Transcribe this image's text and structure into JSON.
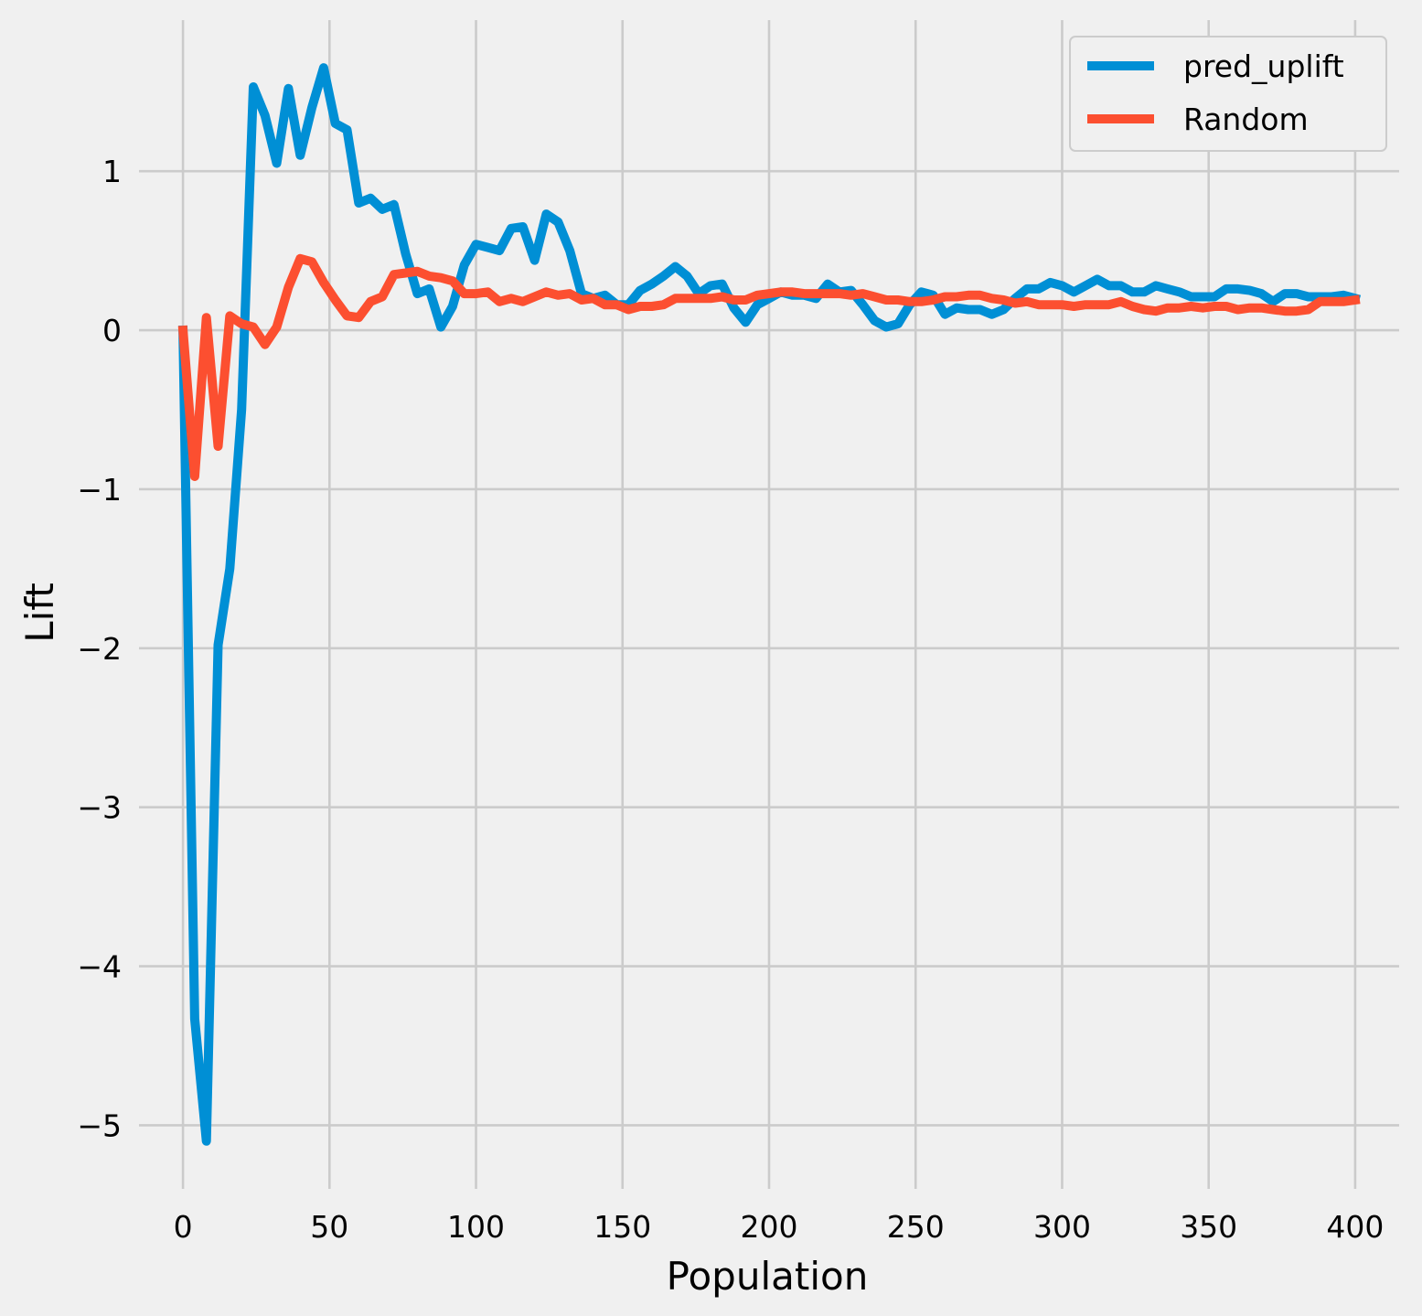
{
  "chart_data": {
    "type": "line",
    "xlabel": "Population",
    "ylabel": "Lift",
    "xlim": [
      -15,
      415
    ],
    "ylim": [
      -5.4,
      1.95
    ],
    "xticks": [
      0,
      50,
      100,
      150,
      200,
      250,
      300,
      350,
      400
    ],
    "xtick_labels": [
      "0",
      "50",
      "100",
      "150",
      "200",
      "250",
      "300",
      "350",
      "400"
    ],
    "yticks": [
      1,
      0,
      -1,
      -2,
      -3,
      -4,
      -5
    ],
    "ytick_labels": [
      "1",
      "0",
      "−1",
      "−2",
      "−3",
      "−4",
      "−5"
    ],
    "grid": true,
    "legend_position": "top-right",
    "series": [
      {
        "name": "pred_uplift",
        "color": "#008fd5",
        "x": [
          0,
          4,
          8,
          12,
          16,
          20,
          24,
          28,
          32,
          36,
          40,
          44,
          48,
          52,
          56,
          60,
          64,
          68,
          72,
          76,
          80,
          84,
          88,
          92,
          96,
          100,
          104,
          108,
          112,
          116,
          120,
          124,
          128,
          132,
          136,
          140,
          144,
          148,
          152,
          156,
          160,
          164,
          168,
          172,
          176,
          180,
          184,
          188,
          192,
          196,
          200,
          204,
          208,
          212,
          216,
          220,
          224,
          228,
          232,
          236,
          240,
          244,
          248,
          252,
          256,
          260,
          264,
          268,
          272,
          276,
          280,
          284,
          288,
          292,
          296,
          300,
          304,
          308,
          312,
          316,
          320,
          324,
          328,
          332,
          336,
          340,
          344,
          348,
          352,
          356,
          360,
          364,
          368,
          372,
          376,
          380,
          384,
          388,
          392,
          396,
          400
        ],
        "y": [
          0,
          -4.33,
          -5.1,
          -1.98,
          -1.5,
          -0.5,
          1.53,
          1.35,
          1.05,
          1.52,
          1.1,
          1.4,
          1.65,
          1.3,
          1.26,
          0.8,
          0.83,
          0.76,
          0.79,
          0.48,
          0.23,
          0.26,
          0.02,
          0.15,
          0.41,
          0.54,
          0.52,
          0.5,
          0.64,
          0.65,
          0.44,
          0.73,
          0.68,
          0.5,
          0.23,
          0.2,
          0.22,
          0.16,
          0.16,
          0.25,
          0.29,
          0.34,
          0.4,
          0.34,
          0.23,
          0.28,
          0.29,
          0.14,
          0.05,
          0.16,
          0.2,
          0.24,
          0.22,
          0.22,
          0.2,
          0.29,
          0.24,
          0.25,
          0.16,
          0.06,
          0.02,
          0.04,
          0.16,
          0.24,
          0.22,
          0.1,
          0.14,
          0.13,
          0.13,
          0.1,
          0.13,
          0.2,
          0.26,
          0.26,
          0.3,
          0.28,
          0.24,
          0.28,
          0.32,
          0.28,
          0.28,
          0.24,
          0.24,
          0.28,
          0.26,
          0.24,
          0.21,
          0.21,
          0.21,
          0.26,
          0.26,
          0.25,
          0.23,
          0.18,
          0.23,
          0.23,
          0.21,
          0.21,
          0.21,
          0.22,
          0.2
        ]
      },
      {
        "name": "Random",
        "color": "#fc4f30",
        "x": [
          0,
          4,
          8,
          12,
          16,
          20,
          24,
          28,
          32,
          36,
          40,
          44,
          48,
          52,
          56,
          60,
          64,
          68,
          72,
          76,
          80,
          84,
          88,
          92,
          96,
          100,
          104,
          108,
          112,
          116,
          120,
          124,
          128,
          132,
          136,
          140,
          144,
          148,
          152,
          156,
          160,
          164,
          168,
          172,
          176,
          180,
          184,
          188,
          192,
          196,
          200,
          204,
          208,
          212,
          216,
          220,
          224,
          228,
          232,
          236,
          240,
          244,
          248,
          252,
          256,
          260,
          264,
          268,
          272,
          276,
          280,
          284,
          288,
          292,
          296,
          300,
          304,
          308,
          312,
          316,
          320,
          324,
          328,
          332,
          336,
          340,
          344,
          348,
          352,
          356,
          360,
          364,
          368,
          372,
          376,
          380,
          384,
          388,
          392,
          396,
          400
        ],
        "y": [
          0,
          -0.92,
          0.08,
          -0.73,
          0.09,
          0.04,
          0.02,
          -0.09,
          0.02,
          0.27,
          0.45,
          0.43,
          0.3,
          0.19,
          0.09,
          0.08,
          0.18,
          0.21,
          0.35,
          0.36,
          0.37,
          0.34,
          0.33,
          0.31,
          0.23,
          0.23,
          0.24,
          0.18,
          0.2,
          0.18,
          0.21,
          0.24,
          0.22,
          0.23,
          0.19,
          0.2,
          0.16,
          0.16,
          0.13,
          0.15,
          0.15,
          0.16,
          0.2,
          0.2,
          0.2,
          0.2,
          0.21,
          0.19,
          0.19,
          0.22,
          0.23,
          0.24,
          0.24,
          0.23,
          0.23,
          0.23,
          0.23,
          0.22,
          0.23,
          0.21,
          0.19,
          0.19,
          0.18,
          0.18,
          0.19,
          0.21,
          0.21,
          0.22,
          0.22,
          0.2,
          0.19,
          0.17,
          0.18,
          0.16,
          0.16,
          0.16,
          0.15,
          0.16,
          0.16,
          0.16,
          0.18,
          0.15,
          0.13,
          0.12,
          0.14,
          0.14,
          0.15,
          0.14,
          0.15,
          0.15,
          0.13,
          0.14,
          0.14,
          0.13,
          0.12,
          0.12,
          0.13,
          0.18,
          0.18,
          0.18,
          0.19
        ]
      }
    ]
  }
}
